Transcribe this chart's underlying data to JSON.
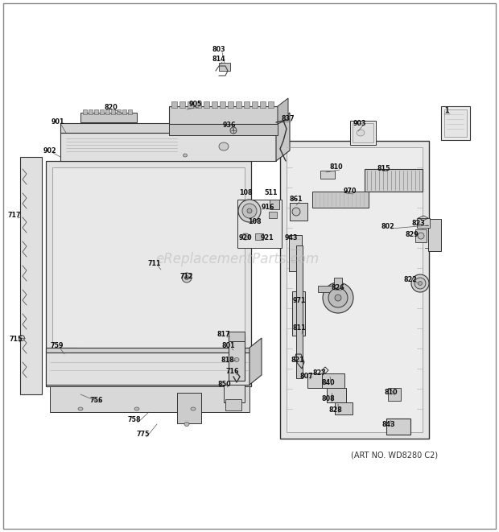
{
  "bg_color": "#ffffff",
  "watermark_text": "eReplacementParts.com",
  "art_no": "(ART NO. WD8280 C2)",
  "figsize": [
    6.2,
    6.61
  ],
  "dpi": 100,
  "parts": [
    [
      "803",
      272,
      62
    ],
    [
      "814",
      272,
      74
    ],
    [
      "820",
      138,
      133
    ],
    [
      "905",
      243,
      130
    ],
    [
      "936",
      285,
      156
    ],
    [
      "837",
      358,
      148
    ],
    [
      "903",
      447,
      153
    ],
    [
      "1",
      555,
      138
    ],
    [
      "901",
      72,
      152
    ],
    [
      "902",
      62,
      187
    ],
    [
      "108",
      305,
      240
    ],
    [
      "511",
      337,
      240
    ],
    [
      "916",
      333,
      257
    ],
    [
      "108",
      316,
      275
    ],
    [
      "920",
      305,
      295
    ],
    [
      "921",
      332,
      295
    ],
    [
      "712",
      232,
      343
    ],
    [
      "711",
      192,
      327
    ],
    [
      "717",
      18,
      268
    ],
    [
      "715",
      20,
      422
    ],
    [
      "759",
      71,
      430
    ],
    [
      "801",
      284,
      430
    ],
    [
      "817",
      278,
      416
    ],
    [
      "818",
      283,
      447
    ],
    [
      "716",
      289,
      462
    ],
    [
      "850",
      279,
      478
    ],
    [
      "756",
      120,
      497
    ],
    [
      "758",
      167,
      522
    ],
    [
      "775",
      178,
      540
    ],
    [
      "810",
      418,
      208
    ],
    [
      "815",
      477,
      209
    ],
    [
      "861",
      368,
      248
    ],
    [
      "970",
      435,
      238
    ],
    [
      "943",
      362,
      295
    ],
    [
      "802",
      482,
      281
    ],
    [
      "829",
      512,
      291
    ],
    [
      "823",
      520,
      277
    ],
    [
      "971",
      372,
      374
    ],
    [
      "826",
      420,
      358
    ],
    [
      "811",
      372,
      407
    ],
    [
      "821",
      370,
      447
    ],
    [
      "807",
      381,
      468
    ],
    [
      "840",
      408,
      476
    ],
    [
      "827",
      397,
      464
    ],
    [
      "808",
      408,
      496
    ],
    [
      "828",
      417,
      510
    ],
    [
      "810",
      486,
      488
    ],
    [
      "843",
      483,
      527
    ],
    [
      "822",
      510,
      347
    ]
  ]
}
